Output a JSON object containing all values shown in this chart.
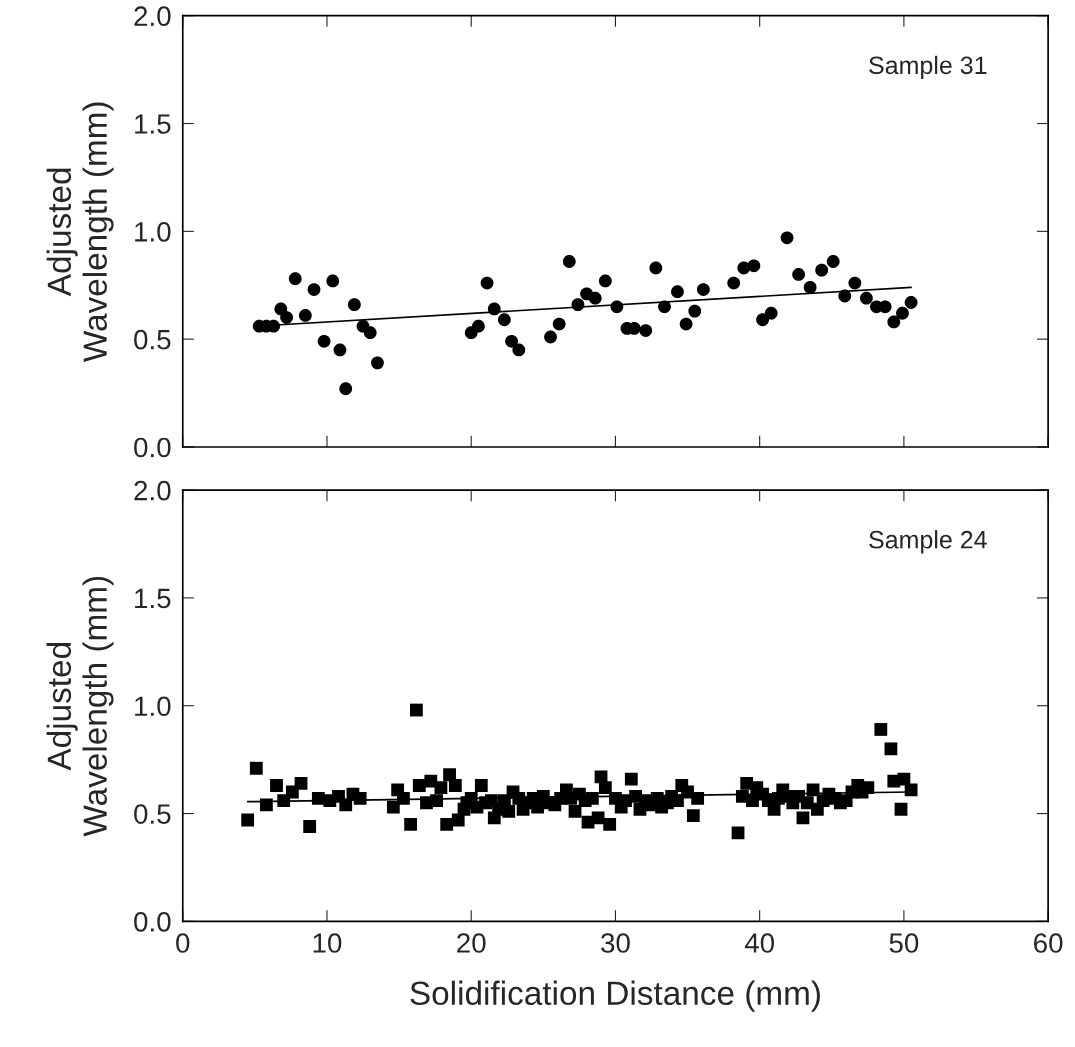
{
  "chart_data": [
    {
      "type": "scatter",
      "ylabel": "Adjusted\nWavelength (mm)",
      "annotations": [
        "Sample 31"
      ],
      "xlim": [
        0,
        60
      ],
      "xticks": [
        0,
        10,
        20,
        30,
        40,
        50,
        60
      ],
      "ylim": [
        0,
        2
      ],
      "yticks": [
        {
          "value": 0,
          "label": "0.0"
        },
        {
          "value": 0.5,
          "label": "0.5"
        },
        {
          "value": 1,
          "label": "1.0"
        },
        {
          "value": 1.5,
          "label": "1.5"
        },
        {
          "value": 2,
          "label": "2.0"
        }
      ],
      "tick_labels": "y",
      "grid": false,
      "legend": false,
      "series": [
        {
          "marker": "circle",
          "color": "#000000",
          "x": [
            5.3,
            5.8,
            6.3,
            6.8,
            7.2,
            7.8,
            8.5,
            9.1,
            9.8,
            10.4,
            10.9,
            11.3,
            11.9,
            12.5,
            13.0,
            13.5,
            20.0,
            20.5,
            21.1,
            21.6,
            22.3,
            22.8,
            23.3,
            25.5,
            26.1,
            26.8,
            27.4,
            28.0,
            28.6,
            29.3,
            30.1,
            30.8,
            31.3,
            32.1,
            32.8,
            33.4,
            34.3,
            34.9,
            35.5,
            36.1,
            38.2,
            38.9,
            39.6,
            40.2,
            40.8,
            41.9,
            42.7,
            43.5,
            44.3,
            45.1,
            45.9,
            46.6,
            47.4,
            48.1,
            48.7,
            49.3,
            49.9,
            50.5
          ],
          "values": [
            0.56,
            0.56,
            0.56,
            0.64,
            0.6,
            0.78,
            0.61,
            0.73,
            0.49,
            0.77,
            0.45,
            0.27,
            0.66,
            0.56,
            0.53,
            0.39,
            0.53,
            0.56,
            0.76,
            0.64,
            0.59,
            0.49,
            0.45,
            0.51,
            0.57,
            0.86,
            0.66,
            0.71,
            0.69,
            0.77,
            0.65,
            0.55,
            0.55,
            0.54,
            0.83,
            0.65,
            0.72,
            0.57,
            0.63,
            0.73,
            0.76,
            0.83,
            0.84,
            0.59,
            0.62,
            0.97,
            0.8,
            0.74,
            0.82,
            0.86,
            0.7,
            0.76,
            0.69,
            0.65,
            0.65,
            0.58,
            0.62,
            0.67
          ]
        },
        {
          "type": "line",
          "marker": "none",
          "line_style": "solid",
          "color": "#000000",
          "x": [
            5.0,
            50.5
          ],
          "values": [
            0.56,
            0.74
          ]
        }
      ]
    },
    {
      "type": "scatter",
      "xlabel": "Solidification Distance (mm)",
      "ylabel": "Adjusted\nWavelength (mm)",
      "annotations": [
        "Sample 24"
      ],
      "xlim": [
        0,
        60
      ],
      "xticks": [
        0,
        10,
        20,
        30,
        40,
        50,
        60
      ],
      "ylim": [
        0,
        2
      ],
      "yticks": [
        {
          "value": 0,
          "label": "0.0"
        },
        {
          "value": 0.5,
          "label": "0.5"
        },
        {
          "value": 1,
          "label": "1.0"
        },
        {
          "value": 1.5,
          "label": "1.5"
        },
        {
          "value": 2,
          "label": "2.0"
        }
      ],
      "grid": false,
      "legend": false,
      "series": [
        {
          "marker": "square",
          "color": "#000000",
          "x": [
            4.5,
            5.1,
            5.8,
            6.5,
            7.0,
            7.6,
            8.2,
            8.8,
            9.4,
            10.2,
            10.8,
            11.3,
            11.8,
            12.3,
            14.6,
            14.9,
            15.3,
            15.8,
            16.2,
            16.4,
            16.9,
            17.2,
            17.6,
            17.9,
            18.3,
            18.5,
            18.9,
            19.1,
            19.5,
            19.7,
            20.0,
            20.4,
            20.7,
            21.0,
            21.4,
            21.6,
            21.9,
            22.3,
            22.6,
            22.9,
            23.3,
            23.6,
            23.9,
            24.3,
            24.6,
            25.0,
            25.4,
            25.8,
            26.2,
            26.6,
            26.9,
            27.2,
            27.5,
            27.9,
            28.1,
            28.4,
            28.8,
            29.0,
            29.3,
            29.6,
            30.0,
            30.4,
            30.7,
            31.1,
            31.4,
            31.7,
            32.1,
            32.5,
            32.9,
            33.2,
            33.6,
            33.9,
            34.3,
            34.6,
            35.0,
            35.4,
            35.7,
            38.5,
            38.8,
            39.1,
            39.5,
            39.8,
            40.2,
            40.6,
            41.0,
            41.3,
            41.6,
            42.0,
            42.3,
            42.7,
            43.0,
            43.3,
            43.7,
            44.0,
            44.4,
            44.8,
            45.2,
            45.6,
            46.0,
            46.4,
            46.8,
            47.1,
            47.5,
            48.4,
            49.1,
            49.3,
            49.8,
            50.0,
            50.5
          ],
          "values": [
            0.47,
            0.71,
            0.54,
            0.63,
            0.56,
            0.6,
            0.64,
            0.44,
            0.57,
            0.56,
            0.58,
            0.54,
            0.59,
            0.57,
            0.53,
            0.61,
            0.57,
            0.45,
            0.98,
            0.63,
            0.55,
            0.65,
            0.56,
            0.62,
            0.45,
            0.68,
            0.63,
            0.47,
            0.52,
            0.55,
            0.57,
            0.53,
            0.63,
            0.55,
            0.56,
            0.48,
            0.52,
            0.56,
            0.51,
            0.6,
            0.57,
            0.52,
            0.55,
            0.57,
            0.53,
            0.58,
            0.55,
            0.54,
            0.57,
            0.61,
            0.57,
            0.51,
            0.59,
            0.56,
            0.46,
            0.57,
            0.48,
            0.67,
            0.62,
            0.45,
            0.57,
            0.53,
            0.56,
            0.66,
            0.58,
            0.52,
            0.56,
            0.54,
            0.57,
            0.53,
            0.55,
            0.58,
            0.56,
            0.63,
            0.6,
            0.49,
            0.57,
            0.41,
            0.58,
            0.64,
            0.56,
            0.62,
            0.59,
            0.56,
            0.52,
            0.57,
            0.61,
            0.58,
            0.55,
            0.58,
            0.48,
            0.55,
            0.61,
            0.52,
            0.56,
            0.59,
            0.57,
            0.55,
            0.56,
            0.6,
            0.63,
            0.6,
            0.62,
            0.89,
            0.8,
            0.65,
            0.52,
            0.66,
            0.61
          ]
        },
        {
          "type": "line",
          "marker": "none",
          "line_style": "solid",
          "color": "#000000",
          "x": [
            4.5,
            50.5
          ],
          "values": [
            0.555,
            0.6
          ]
        }
      ]
    }
  ]
}
